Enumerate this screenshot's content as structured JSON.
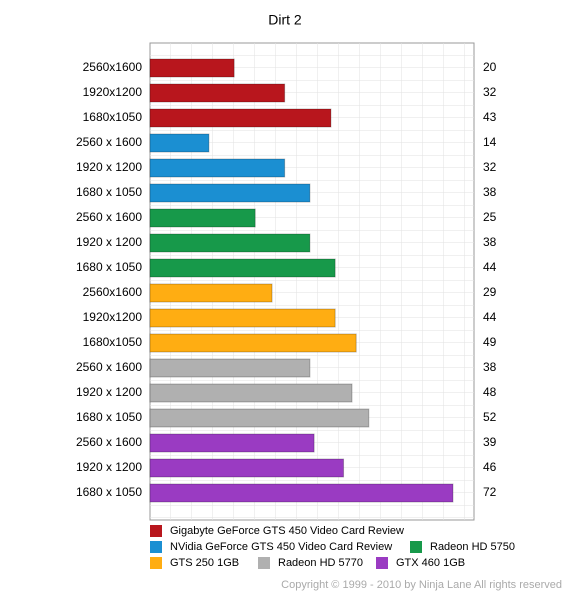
{
  "chart_data": {
    "type": "bar",
    "orientation": "horizontal",
    "title": "Dirt 2",
    "categories": [
      "2560x1600",
      "1920x1200",
      "1680x1050",
      "2560 x 1600",
      "1920 x 1200",
      "1680 x 1050",
      "2560 x 1600",
      "1920 x 1200",
      "1680 x 1050",
      "2560x1600",
      "1920x1200",
      "1680x1050",
      "2560 x 1600",
      "1920 x 1200",
      "1680 x 1050",
      "2560 x 1600",
      "1920 x 1200",
      "1680 x 1050"
    ],
    "series": [
      {
        "name": "Gigabyte GeForce GTS 450 Video Card Review",
        "color": "#b8161d",
        "values": [
          20,
          32,
          43,
          null,
          null,
          null,
          null,
          null,
          null,
          null,
          null,
          null,
          null,
          null,
          null,
          null,
          null,
          null
        ]
      },
      {
        "name": "NVidia GeForce GTS 450 Video Card Review",
        "color": "#1b8fd2",
        "values": [
          null,
          null,
          null,
          14,
          32,
          38,
          null,
          null,
          null,
          null,
          null,
          null,
          null,
          null,
          null,
          null,
          null,
          null
        ]
      },
      {
        "name": "Radeon HD 5750",
        "color": "#17994a",
        "values": [
          null,
          null,
          null,
          null,
          null,
          null,
          25,
          38,
          44,
          null,
          null,
          null,
          null,
          null,
          null,
          null,
          null,
          null
        ]
      },
      {
        "name": "GTS 250 1GB",
        "color": "#ffad12",
        "values": [
          null,
          null,
          null,
          null,
          null,
          null,
          null,
          null,
          null,
          29,
          44,
          49,
          null,
          null,
          null,
          null,
          null,
          null
        ]
      },
      {
        "name": "Radeon HD 5770",
        "color": "#b0b0b0",
        "values": [
          null,
          null,
          null,
          null,
          null,
          null,
          null,
          null,
          null,
          null,
          null,
          null,
          38,
          48,
          52,
          null,
          null,
          null
        ]
      },
      {
        "name": "GTX 460 1GB",
        "color": "#9a3bc2",
        "values": [
          null,
          null,
          null,
          null,
          null,
          null,
          null,
          null,
          null,
          null,
          null,
          null,
          null,
          null,
          null,
          39,
          46,
          72
        ]
      }
    ],
    "xlim": [
      0,
      77
    ],
    "grid": true,
    "copyright": "Copyright © 1999 - 2010 by Ninja Lane All rights reserved"
  }
}
